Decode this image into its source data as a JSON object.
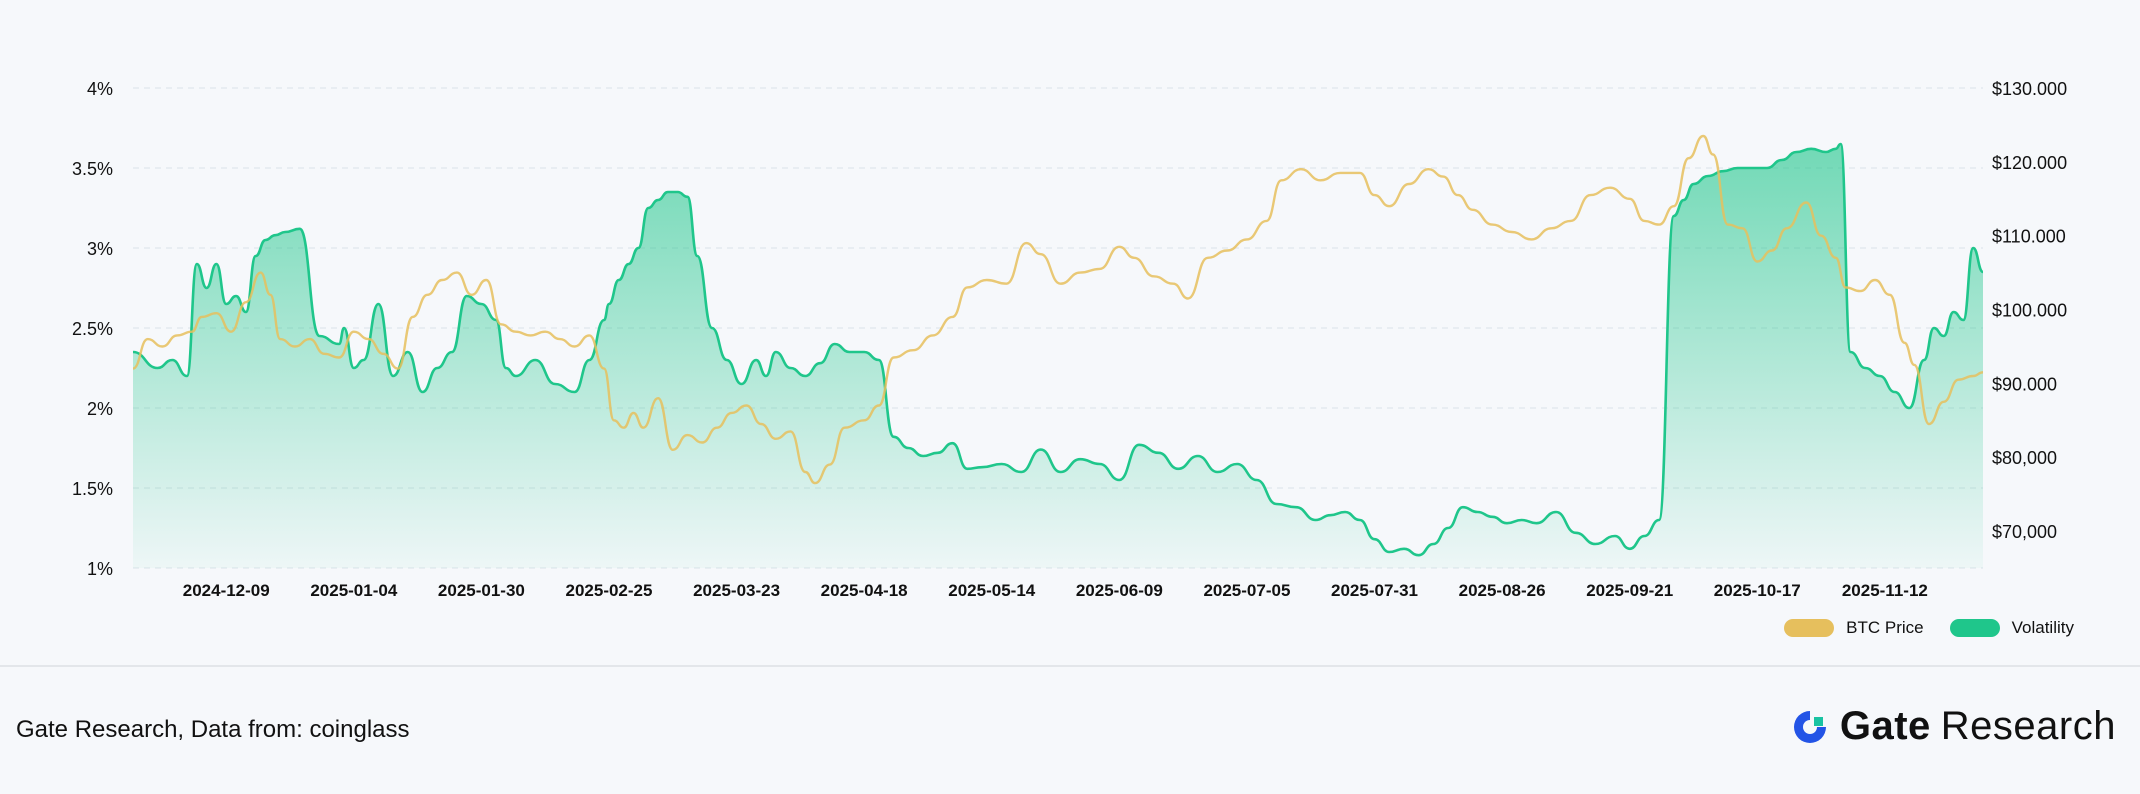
{
  "source_text": "Gate Research, Data from: coinglass",
  "brand": {
    "name": "Gate",
    "suffix": "Research",
    "logo_color": "#2354e6"
  },
  "legend": [
    {
      "label": "BTC Price",
      "color": "#e6bf5d"
    },
    {
      "label": "Volatility",
      "color": "#1fc68b"
    }
  ],
  "chart_data": {
    "type": "area",
    "left_axis": {
      "ticks": [
        "1%",
        "1.5%",
        "2%",
        "2.5%",
        "3%",
        "3.5%",
        "4%"
      ],
      "ylim": [
        1,
        4
      ]
    },
    "right_axis": {
      "ticks": [
        "$70,000",
        "$80,000",
        "$90.000",
        "$100.000",
        "$110.000",
        "$120.000",
        "$130.000"
      ],
      "ylim": [
        65000,
        130000
      ]
    },
    "x_ticks": [
      "2024-12-09",
      "2025-01-04",
      "2025-01-30",
      "2025-02-25",
      "2025-03-23",
      "2025-04-18",
      "2025-05-14",
      "2025-06-09",
      "2025-07-05",
      "2025-07-31",
      "2025-08-26",
      "2025-09-21",
      "2025-10-17",
      "2025-11-12"
    ],
    "grid": true,
    "legend_position": "bottom-right",
    "series": [
      {
        "name": "Volatility",
        "axis": "left",
        "color": "#1fc68b",
        "fill": true,
        "x": [
          "2024-11-20",
          "2024-11-25",
          "2024-11-28",
          "2024-12-01",
          "2024-12-03",
          "2024-12-05",
          "2024-12-07",
          "2024-12-09",
          "2024-12-11",
          "2024-12-13",
          "2024-12-15",
          "2024-12-17",
          "2024-12-19",
          "2024-12-21",
          "2024-12-24",
          "2024-12-28",
          "2025-01-01",
          "2025-01-02",
          "2025-01-04",
          "2025-01-06",
          "2025-01-09",
          "2025-01-12",
          "2025-01-15",
          "2025-01-18",
          "2025-01-21",
          "2025-01-24",
          "2025-01-27",
          "2025-01-30",
          "2025-02-02",
          "2025-02-04",
          "2025-02-06",
          "2025-02-10",
          "2025-02-14",
          "2025-02-18",
          "2025-02-21",
          "2025-02-24",
          "2025-02-25",
          "2025-02-27",
          "2025-03-01",
          "2025-03-03",
          "2025-03-05",
          "2025-03-07",
          "2025-03-09",
          "2025-03-11",
          "2025-03-13",
          "2025-03-15",
          "2025-03-18",
          "2025-03-21",
          "2025-03-24",
          "2025-03-27",
          "2025-03-29",
          "2025-03-31",
          "2025-04-03",
          "2025-04-06",
          "2025-04-09",
          "2025-04-12",
          "2025-04-15",
          "2025-04-18",
          "2025-04-21",
          "2025-04-24",
          "2025-04-27",
          "2025-04-30",
          "2025-05-03",
          "2025-05-06",
          "2025-05-09",
          "2025-05-12",
          "2025-05-16",
          "2025-05-20",
          "2025-05-24",
          "2025-05-28",
          "2025-06-01",
          "2025-06-05",
          "2025-06-09",
          "2025-06-13",
          "2025-06-17",
          "2025-06-21",
          "2025-06-25",
          "2025-06-29",
          "2025-07-03",
          "2025-07-07",
          "2025-07-11",
          "2025-07-15",
          "2025-07-19",
          "2025-07-22",
          "2025-07-25",
          "2025-07-28",
          "2025-07-31",
          "2025-08-03",
          "2025-08-06",
          "2025-08-09",
          "2025-08-12",
          "2025-08-15",
          "2025-08-18",
          "2025-08-21",
          "2025-08-24",
          "2025-08-27",
          "2025-08-30",
          "2025-09-02",
          "2025-09-06",
          "2025-09-10",
          "2025-09-14",
          "2025-09-18",
          "2025-09-21",
          "2025-09-24",
          "2025-09-27",
          "2025-09-30",
          "2025-10-02",
          "2025-10-04",
          "2025-10-07",
          "2025-10-10",
          "2025-10-13",
          "2025-10-16",
          "2025-10-19",
          "2025-10-22",
          "2025-10-25",
          "2025-10-28",
          "2025-10-31",
          "2025-11-02",
          "2025-11-03",
          "2025-11-05",
          "2025-11-08",
          "2025-11-11",
          "2025-11-14",
          "2025-11-17",
          "2025-11-20",
          "2025-11-22",
          "2025-11-24",
          "2025-11-26",
          "2025-11-28",
          "2025-11-30",
          "2025-12-02"
        ],
        "values": [
          2.35,
          2.25,
          2.3,
          2.2,
          2.9,
          2.75,
          2.9,
          2.65,
          2.7,
          2.6,
          2.95,
          3.05,
          3.08,
          3.1,
          3.12,
          2.45,
          2.4,
          2.5,
          2.25,
          2.3,
          2.65,
          2.2,
          2.35,
          2.1,
          2.25,
          2.35,
          2.7,
          2.65,
          2.55,
          2.25,
          2.2,
          2.3,
          2.15,
          2.1,
          2.3,
          2.55,
          2.65,
          2.8,
          2.9,
          3.0,
          3.25,
          3.3,
          3.35,
          3.35,
          3.32,
          2.95,
          2.5,
          2.3,
          2.15,
          2.3,
          2.2,
          2.35,
          2.25,
          2.2,
          2.28,
          2.4,
          2.35,
          2.35,
          2.3,
          1.82,
          1.75,
          1.7,
          1.72,
          1.78,
          1.62,
          1.63,
          1.65,
          1.6,
          1.74,
          1.6,
          1.68,
          1.65,
          1.55,
          1.77,
          1.72,
          1.62,
          1.7,
          1.6,
          1.65,
          1.55,
          1.4,
          1.38,
          1.3,
          1.33,
          1.35,
          1.3,
          1.18,
          1.1,
          1.12,
          1.08,
          1.15,
          1.25,
          1.38,
          1.35,
          1.32,
          1.28,
          1.3,
          1.28,
          1.35,
          1.22,
          1.15,
          1.2,
          1.12,
          1.2,
          1.3,
          3.2,
          3.3,
          3.4,
          3.45,
          3.48,
          3.5,
          3.5,
          3.5,
          3.55,
          3.6,
          3.62,
          3.6,
          3.62,
          3.65,
          2.35,
          2.25,
          2.2,
          2.1,
          2.0,
          2.3,
          2.5,
          2.45,
          2.6,
          2.55,
          3.0,
          2.85
        ]
      },
      {
        "name": "BTC Price",
        "axis": "right",
        "color": "#e6bf5d",
        "fill": false,
        "x": [
          "2024-11-20",
          "2024-11-23",
          "2024-11-26",
          "2024-11-29",
          "2024-12-02",
          "2024-12-04",
          "2024-12-07",
          "2024-12-10",
          "2024-12-13",
          "2024-12-16",
          "2024-12-18",
          "2024-12-20",
          "2024-12-23",
          "2024-12-26",
          "2024-12-29",
          "2025-01-01",
          "2025-01-04",
          "2025-01-07",
          "2025-01-10",
          "2025-01-13",
          "2025-01-16",
          "2025-01-19",
          "2025-01-22",
          "2025-01-25",
          "2025-01-28",
          "2025-01-31",
          "2025-02-03",
          "2025-02-06",
          "2025-02-09",
          "2025-02-12",
          "2025-02-15",
          "2025-02-18",
          "2025-02-21",
          "2025-02-24",
          "2025-02-26",
          "2025-02-28",
          "2025-03-02",
          "2025-03-04",
          "2025-03-07",
          "2025-03-10",
          "2025-03-13",
          "2025-03-16",
          "2025-03-19",
          "2025-03-22",
          "2025-03-25",
          "2025-03-28",
          "2025-03-31",
          "2025-04-03",
          "2025-04-06",
          "2025-04-08",
          "2025-04-11",
          "2025-04-14",
          "2025-04-18",
          "2025-04-21",
          "2025-04-24",
          "2025-04-28",
          "2025-05-02",
          "2025-05-06",
          "2025-05-09",
          "2025-05-13",
          "2025-05-17",
          "2025-05-21",
          "2025-05-24",
          "2025-05-28",
          "2025-06-01",
          "2025-06-05",
          "2025-06-09",
          "2025-06-12",
          "2025-06-16",
          "2025-06-20",
          "2025-06-23",
          "2025-06-27",
          "2025-07-01",
          "2025-07-05",
          "2025-07-09",
          "2025-07-12",
          "2025-07-16",
          "2025-07-20",
          "2025-07-24",
          "2025-07-28",
          "2025-07-31",
          "2025-08-03",
          "2025-08-07",
          "2025-08-11",
          "2025-08-14",
          "2025-08-17",
          "2025-08-20",
          "2025-08-24",
          "2025-08-28",
          "2025-09-01",
          "2025-09-05",
          "2025-09-09",
          "2025-09-13",
          "2025-09-17",
          "2025-09-21",
          "2025-09-24",
          "2025-09-27",
          "2025-09-30",
          "2025-10-03",
          "2025-10-06",
          "2025-10-08",
          "2025-10-11",
          "2025-10-14",
          "2025-10-17",
          "2025-10-20",
          "2025-10-23",
          "2025-10-27",
          "2025-10-30",
          "2025-11-02",
          "2025-11-04",
          "2025-11-07",
          "2025-11-10",
          "2025-11-13",
          "2025-11-16",
          "2025-11-18",
          "2025-11-21",
          "2025-11-24",
          "2025-11-27",
          "2025-11-30",
          "2025-12-02"
        ],
        "values": [
          92000,
          96000,
          95000,
          96500,
          97000,
          99000,
          99500,
          97000,
          101000,
          105000,
          102000,
          96000,
          95000,
          96000,
          94000,
          93500,
          97000,
          96000,
          94000,
          92000,
          99000,
          102000,
          104000,
          105000,
          102000,
          104000,
          98000,
          97000,
          96500,
          97000,
          96000,
          95000,
          96500,
          92000,
          85000,
          84000,
          86000,
          84000,
          88000,
          81000,
          83000,
          82000,
          84000,
          86000,
          87000,
          84500,
          82500,
          83500,
          78000,
          76500,
          79000,
          84000,
          85000,
          87000,
          93500,
          94500,
          96500,
          99000,
          103000,
          104000,
          103500,
          109000,
          107500,
          103500,
          105000,
          105500,
          108500,
          107000,
          104500,
          103500,
          101500,
          107000,
          108000,
          109500,
          112000,
          117500,
          119000,
          117500,
          118500,
          118500,
          115500,
          114000,
          117000,
          119000,
          118000,
          115500,
          113500,
          111500,
          110500,
          109500,
          111000,
          112000,
          115500,
          116500,
          115000,
          112000,
          111500,
          114000,
          120500,
          123500,
          121000,
          111500,
          111000,
          106500,
          108000,
          111000,
          114500,
          110000,
          107000,
          103000,
          102500,
          104000,
          102000,
          95500,
          92500,
          84500,
          87500,
          90500,
          91000,
          91500
        ]
      }
    ]
  }
}
